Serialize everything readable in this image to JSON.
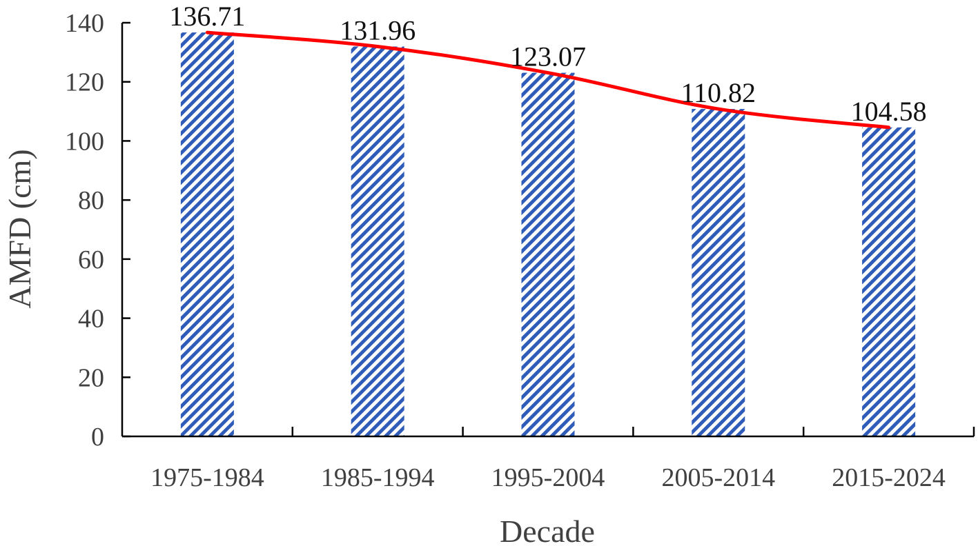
{
  "chart_data": {
    "type": "bar",
    "categories": [
      "1975-1984",
      "1985-1994",
      "1995-2004",
      "2005-2014",
      "2015-2024"
    ],
    "values": [
      136.71,
      131.96,
      123.07,
      110.82,
      104.58
    ],
    "data_labels": [
      "136.71",
      "131.96",
      "123.07",
      "110.82",
      "104.58"
    ],
    "overlay_line": {
      "type": "line",
      "values": [
        136.71,
        131.96,
        123.07,
        110.82,
        104.58
      ],
      "color": "#ff0000"
    },
    "xlabel": "Decade",
    "ylabel": "AMFD (cm)",
    "ylim": [
      0,
      140
    ],
    "yticks": [
      0,
      20,
      40,
      60,
      80,
      100,
      120,
      140
    ],
    "ytick_labels": [
      "0",
      "20",
      "40",
      "60",
      "80",
      "100",
      "120",
      "140"
    ],
    "grid": false,
    "bar_pattern": "diagonal-stripes",
    "bar_color": "#2e5cb8"
  }
}
